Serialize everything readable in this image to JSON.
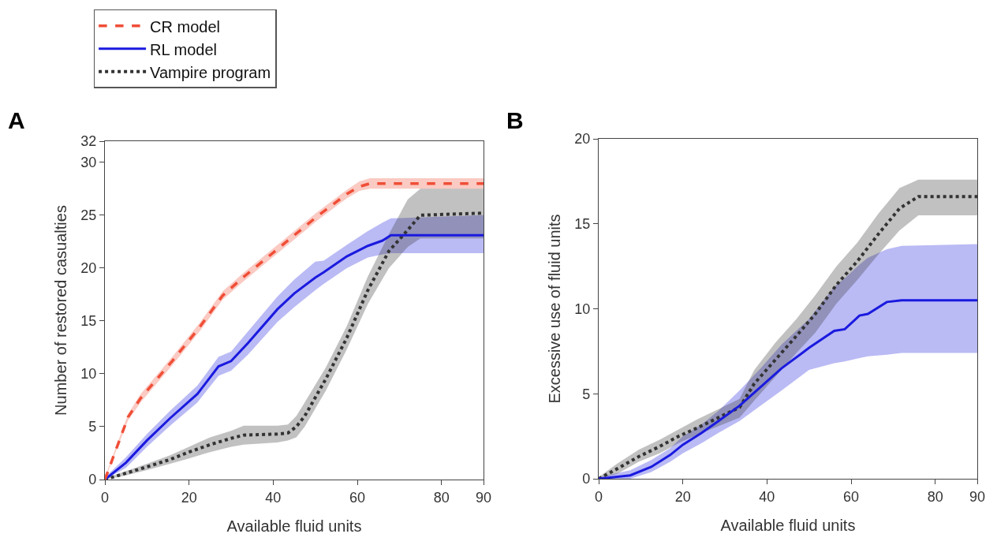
{
  "chart_data": [
    {
      "type": "line",
      "title": "A",
      "xlabel": "Available fluid units",
      "ylabel": "Number of restored casualties",
      "xlim": [
        0,
        90
      ],
      "xticks": [
        0,
        20,
        40,
        60,
        80,
        90
      ],
      "ylim": [
        0,
        32
      ],
      "yticks": [
        0,
        5,
        10,
        15,
        20,
        25,
        30,
        32
      ],
      "grid": false,
      "legend": "top left",
      "series": [
        {
          "name": "CR model",
          "color": "#f04e37",
          "line_style": "dashed",
          "x": [
            0,
            5.5,
            8.5,
            16,
            22.5,
            28,
            32.5,
            38,
            45,
            50.5,
            57.5,
            60.5,
            63,
            90
          ],
          "values": [
            0,
            5.9,
            7.7,
            11.2,
            14.4,
            17.4,
            19,
            20.8,
            23.1,
            24.9,
            27,
            27.7,
            28,
            28
          ],
          "lower": [
            0,
            5.6,
            7.3,
            10.8,
            14.0,
            17.0,
            18.6,
            20.4,
            22.7,
            24.5,
            26.6,
            27.3,
            27.5,
            27.5
          ],
          "upper": [
            0.2,
            6.2,
            8.1,
            11.6,
            14.8,
            17.8,
            19.4,
            21.2,
            23.5,
            25.3,
            27.4,
            28.2,
            28.5,
            28.5
          ]
        },
        {
          "name": "RL model",
          "color": "#1a1adf",
          "line_style": "solid",
          "x": [
            0,
            5,
            10,
            15.5,
            22,
            27,
            30,
            34,
            41,
            45,
            50,
            52,
            57.5,
            62.5,
            66,
            68,
            90
          ],
          "values": [
            0,
            1.6,
            3.7,
            5.8,
            8.1,
            10.7,
            11.2,
            12.9,
            16.1,
            17.6,
            19.1,
            19.6,
            21.1,
            22.1,
            22.6,
            23.1,
            23.1
          ],
          "lower": [
            0,
            1.1,
            3.1,
            5.1,
            7.3,
            9.8,
            10.3,
            11.8,
            14.9,
            16.3,
            17.9,
            18.5,
            20.0,
            21.0,
            21.3,
            21.4,
            21.4
          ],
          "upper": [
            0.2,
            2.1,
            4.3,
            6.5,
            8.9,
            11.6,
            12.1,
            14.0,
            17.3,
            18.9,
            20.6,
            20.7,
            22.2,
            23.5,
            24.3,
            24.7,
            25.0
          ]
        },
        {
          "name": "Vampire program",
          "color": "#333333",
          "line_style": "dotted",
          "x": [
            0,
            5,
            10,
            15.5,
            20,
            25,
            30,
            33,
            41,
            43.5,
            45.5,
            47.5,
            52.5,
            57.5,
            62.5,
            67.5,
            72,
            75,
            90
          ],
          "values": [
            0,
            0.6,
            1.2,
            1.9,
            2.6,
            3.3,
            3.9,
            4.2,
            4.3,
            4.4,
            5.0,
            6.0,
            9.5,
            13.4,
            17.9,
            21.6,
            23.6,
            25,
            25.2
          ],
          "lower": [
            0,
            0.4,
            0.9,
            1.5,
            2.0,
            2.6,
            3.1,
            3.3,
            3.5,
            3.7,
            4.0,
            5.0,
            8.4,
            12.3,
            16.6,
            20.0,
            22.0,
            22.8,
            22.8
          ],
          "upper": [
            0.1,
            0.8,
            1.5,
            2.3,
            3.1,
            4.0,
            4.6,
            5.1,
            5.1,
            5.2,
            6.0,
            7.3,
            10.6,
            14.5,
            19.2,
            23.2,
            26.5,
            27.5,
            27.5
          ]
        }
      ]
    },
    {
      "type": "line",
      "title": "B",
      "xlabel": "Available fluid units",
      "ylabel": "Excessive use of fluid units",
      "xlim": [
        0,
        90
      ],
      "xticks": [
        0,
        20,
        40,
        60,
        80,
        90
      ],
      "ylim": [
        0,
        20
      ],
      "yticks": [
        0,
        5,
        10,
        15,
        20
      ],
      "grid": false,
      "series": [
        {
          "color": "#1a1adf",
          "line_style": "solid",
          "x": [
            0,
            7.5,
            12.5,
            17,
            20,
            24.5,
            28.5,
            33.5,
            38.5,
            43.5,
            50,
            56,
            58.5,
            62,
            64,
            68.5,
            72,
            90
          ],
          "values": [
            0,
            0.2,
            0.7,
            1.4,
            2.0,
            2.7,
            3.4,
            4.3,
            5.4,
            6.5,
            7.7,
            8.7,
            8.8,
            9.6,
            9.7,
            10.4,
            10.5,
            10.5
          ],
          "lower": [
            0,
            0,
            0.4,
            1.0,
            1.5,
            2.1,
            2.7,
            3.4,
            4.3,
            5.2,
            6.4,
            6.8,
            6.9,
            7.1,
            7.2,
            7.3,
            7.4,
            7.4
          ],
          "upper": [
            0.1,
            0.5,
            1.1,
            1.8,
            2.5,
            3.2,
            4.0,
            5.2,
            6.5,
            7.9,
            9.4,
            11.3,
            11.8,
            12.6,
            13.0,
            13.5,
            13.7,
            13.8
          ]
        },
        {
          "color": "#333333",
          "line_style": "dotted",
          "x": [
            0,
            4.5,
            9.5,
            14.5,
            19,
            23.5,
            28.5,
            33.5,
            37,
            42,
            47,
            51.5,
            56.5,
            61.5,
            66.5,
            71.5,
            76,
            90
          ],
          "values": [
            0,
            0.6,
            1.3,
            1.9,
            2.5,
            3.0,
            3.6,
            4.2,
            5.6,
            7.0,
            8.4,
            9.7,
            11.4,
            12.8,
            14.4,
            15.9,
            16.6,
            16.6
          ],
          "lower": [
            0,
            0.3,
            1.0,
            1.5,
            2.1,
            2.6,
            3.1,
            3.6,
            4.6,
            6.0,
            7.4,
            8.6,
            10.3,
            11.7,
            13.2,
            14.6,
            15.5,
            15.5
          ],
          "upper": [
            0.1,
            0.9,
            1.7,
            2.3,
            2.9,
            3.5,
            4.1,
            4.7,
            6.4,
            8.0,
            9.4,
            10.8,
            12.5,
            13.9,
            15.6,
            17.1,
            17.6,
            17.6
          ]
        }
      ]
    }
  ]
}
